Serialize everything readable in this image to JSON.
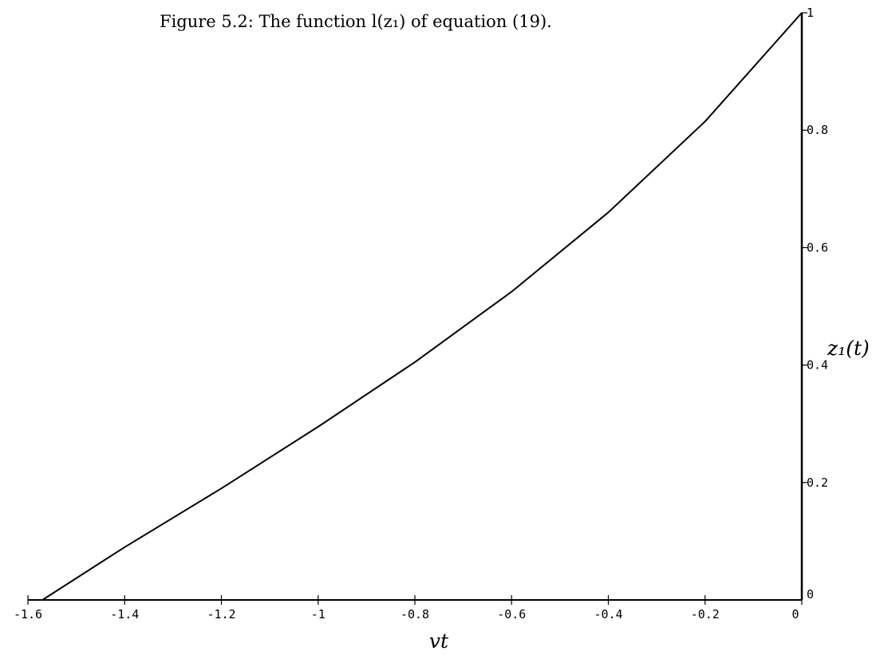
{
  "chart_data": {
    "type": "line",
    "title": "Figure 5.2: The function l(z₁) of equation (19).",
    "xlabel": "vt",
    "ylabel": "z₁(t)",
    "xlim": [
      -1.6,
      0
    ],
    "ylim": [
      0,
      1
    ],
    "x_ticks": [
      {
        "value": -1.6,
        "label": "-1.6"
      },
      {
        "value": -1.4,
        "label": "-1.4"
      },
      {
        "value": -1.2,
        "label": "-1.2"
      },
      {
        "value": -1.0,
        "label": "-1"
      },
      {
        "value": -0.8,
        "label": "-0.8"
      },
      {
        "value": -0.6,
        "label": "-0.6"
      },
      {
        "value": -0.4,
        "label": "-0.4"
      },
      {
        "value": -0.2,
        "label": "-0.2"
      },
      {
        "value": 0,
        "label": "0"
      }
    ],
    "y_ticks": [
      {
        "value": 0,
        "label": "0"
      },
      {
        "value": 0.2,
        "label": "0.2"
      },
      {
        "value": 0.4,
        "label": "0.4"
      },
      {
        "value": 0.6,
        "label": "0.6"
      },
      {
        "value": 0.8,
        "label": "0.8"
      },
      {
        "value": 1.0,
        "label": "1"
      }
    ],
    "grid": false,
    "series": [
      {
        "x": [
          -1.57,
          -1.4,
          -1.2,
          -1.0,
          -0.8,
          -0.6,
          -0.4,
          -0.2,
          0
        ],
        "y": [
          0,
          0.09,
          0.19,
          0.295,
          0.405,
          0.525,
          0.66,
          0.815,
          1.0
        ]
      }
    ]
  }
}
